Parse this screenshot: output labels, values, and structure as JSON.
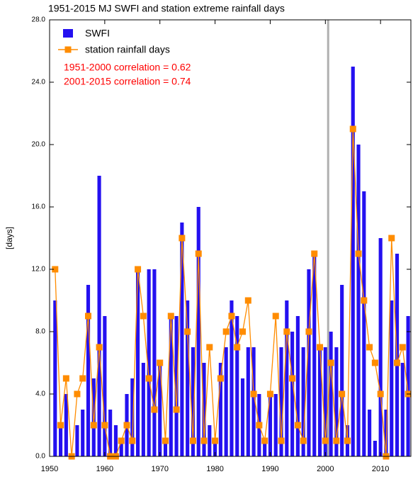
{
  "chart_data": {
    "type": "bar_line",
    "title": "1951-2015 MJ SWFI and station extreme rainfall days",
    "y_label": "[days]",
    "annotations": [
      "1951-2000 correlation =  0.62",
      "2001-2015 correlation =  0.74"
    ],
    "annotation_color": "#ff0000",
    "x": [
      1951,
      1952,
      1953,
      1954,
      1955,
      1956,
      1957,
      1958,
      1959,
      1960,
      1961,
      1962,
      1963,
      1964,
      1965,
      1966,
      1967,
      1968,
      1969,
      1970,
      1971,
      1972,
      1973,
      1974,
      1975,
      1976,
      1977,
      1978,
      1979,
      1980,
      1981,
      1982,
      1983,
      1984,
      1985,
      1986,
      1987,
      1988,
      1989,
      1990,
      1991,
      1992,
      1993,
      1994,
      1995,
      1996,
      1997,
      1998,
      1999,
      2000,
      2001,
      2002,
      2003,
      2004,
      2005,
      2006,
      2007,
      2008,
      2009,
      2010,
      2011,
      2012,
      2013,
      2014,
      2015
    ],
    "series": [
      {
        "name": "SWFI",
        "color": "#2410f0",
        "kind": "bar",
        "values": [
          10,
          2,
          4,
          0,
          2,
          3,
          11,
          5,
          18,
          9,
          3,
          2,
          1,
          4,
          5,
          12,
          6,
          12,
          12,
          6,
          1,
          9,
          9,
          15,
          10,
          7,
          16,
          6,
          2,
          1,
          6,
          7,
          10,
          9,
          5,
          7,
          7,
          4,
          1,
          4,
          4,
          7,
          10,
          8,
          9,
          7,
          12,
          13,
          7,
          7,
          8,
          7,
          11,
          2,
          25,
          20,
          17,
          3,
          1,
          14,
          3,
          10,
          13,
          6,
          9
        ]
      },
      {
        "name": "station rainfall days",
        "color": "#ff8c00",
        "kind": "line",
        "values": [
          12,
          2,
          5,
          0,
          4,
          5,
          9,
          2,
          7,
          2,
          0,
          0,
          1,
          2,
          1,
          12,
          9,
          5,
          3,
          6,
          1,
          9,
          3,
          14,
          8,
          1,
          13,
          1,
          7,
          1,
          5,
          8,
          9,
          7,
          8,
          10,
          4,
          2,
          1,
          4,
          9,
          1,
          8,
          5,
          2,
          1,
          8,
          13,
          7,
          1,
          6,
          1,
          4,
          1,
          21,
          13,
          10,
          7,
          6,
          4,
          0,
          14,
          6,
          7,
          4
        ]
      }
    ],
    "xlim": [
      1950,
      2015.5
    ],
    "xticks": [
      1950,
      1960,
      1970,
      1980,
      1990,
      2000,
      2010
    ],
    "ylim": [
      0,
      28
    ],
    "yticks": [
      {
        "value": 0,
        "label": "0.0"
      },
      {
        "value": 4,
        "label": "4.0"
      },
      {
        "value": 8,
        "label": "8.0"
      },
      {
        "value": 12,
        "label": "12.0"
      },
      {
        "value": 16,
        "label": "16.0"
      },
      {
        "value": 20,
        "label": "20.0"
      },
      {
        "value": 24,
        "label": "24.0"
      },
      {
        "value": 28,
        "label": "28.0"
      }
    ],
    "vline": 2000.5,
    "vline_color": "#b0b0b0"
  }
}
